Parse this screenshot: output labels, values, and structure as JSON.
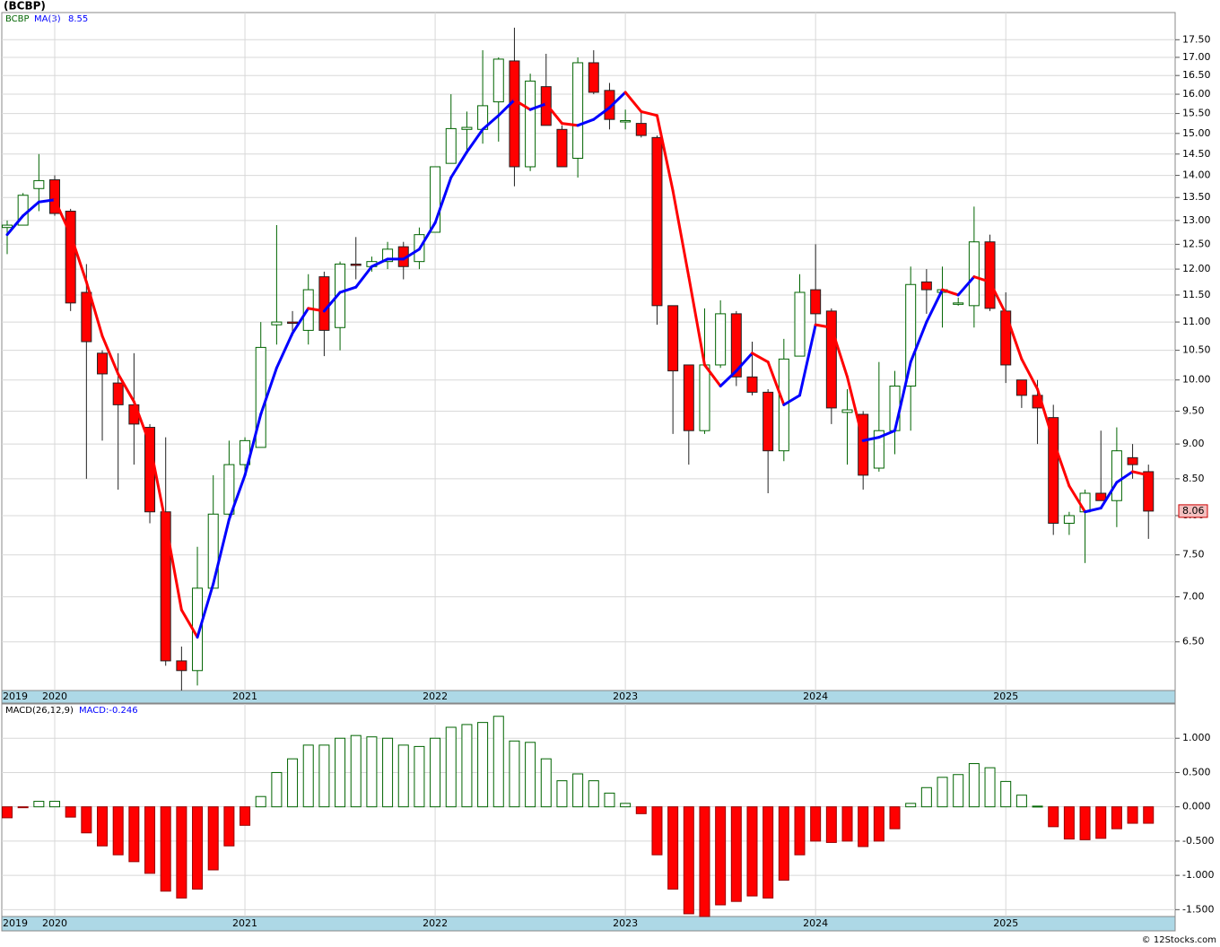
{
  "chart_data": [
    {
      "type": "candlestick",
      "title": "(BCBP)",
      "name": "BCBP",
      "log_scale": true,
      "grid": true,
      "up_color": "#006400",
      "down_color": "#ff0000",
      "categories": [
        "2019",
        null,
        null,
        "2020",
        null,
        null,
        null,
        null,
        null,
        null,
        null,
        null,
        null,
        null,
        null,
        "2021",
        null,
        null,
        null,
        null,
        null,
        null,
        null,
        null,
        null,
        null,
        null,
        "2022",
        null,
        null,
        null,
        null,
        null,
        null,
        null,
        null,
        null,
        null,
        null,
        "2023",
        null,
        null,
        null,
        null,
        null,
        null,
        null,
        null,
        null,
        null,
        null,
        "2024",
        null,
        null,
        null,
        null,
        null,
        null,
        null,
        null,
        null,
        null,
        null,
        "2025",
        null,
        null,
        null,
        null,
        null,
        null,
        null,
        null,
        null
      ],
      "open": [
        12.85,
        12.9,
        13.7,
        13.9,
        13.2,
        11.55,
        10.45,
        9.95,
        9.6,
        9.25,
        8.05,
        6.3,
        6.2,
        7.1,
        8.02,
        8.7,
        8.95,
        10.95,
        11.0,
        10.85,
        11.85,
        10.9,
        12.1,
        12.05,
        12.15,
        12.45,
        12.15,
        12.75,
        14.28,
        15.1,
        15.1,
        15.8,
        16.9,
        14.2,
        16.2,
        15.1,
        14.4,
        16.85,
        16.1,
        15.3,
        15.25,
        14.9,
        11.3,
        10.25,
        9.2,
        10.25,
        11.15,
        10.05,
        9.8,
        8.9,
        10.4,
        11.6,
        11.2,
        9.48,
        9.45,
        8.65,
        9.2,
        9.9,
        11.75,
        11.55,
        11.35,
        11.3,
        12.55,
        11.2,
        10.0,
        9.75,
        9.4,
        7.9,
        8.05,
        8.3,
        8.2,
        8.8,
        8.6
      ],
      "high": [
        13.0,
        13.6,
        14.5,
        14.0,
        13.25,
        12.1,
        10.5,
        10.45,
        10.45,
        9.3,
        9.1,
        6.45,
        7.6,
        8.55,
        9.05,
        9.1,
        11.0,
        12.9,
        11.2,
        11.9,
        11.95,
        12.15,
        12.65,
        12.25,
        12.55,
        12.55,
        12.85,
        14.2,
        16.0,
        15.55,
        17.2,
        17.0,
        17.85,
        16.55,
        17.1,
        15.2,
        17.0,
        17.2,
        16.3,
        15.6,
        15.55,
        14.95,
        11.3,
        10.25,
        11.25,
        11.4,
        11.2,
        10.65,
        9.85,
        10.7,
        11.9,
        12.5,
        11.25,
        9.85,
        9.5,
        10.3,
        10.15,
        12.05,
        12.0,
        12.05,
        11.45,
        13.3,
        12.7,
        11.55,
        10.0,
        10.0,
        9.6,
        8.05,
        8.35,
        9.2,
        9.25,
        9.0,
        8.7
      ],
      "low": [
        12.3,
        12.9,
        13.2,
        13.1,
        11.2,
        8.5,
        9.05,
        8.35,
        8.7,
        7.9,
        6.25,
        6.0,
        6.05,
        7.1,
        7.95,
        8.6,
        8.95,
        10.6,
        10.75,
        10.6,
        10.4,
        10.5,
        11.8,
        11.95,
        12.0,
        11.8,
        12.0,
        12.75,
        14.28,
        14.5,
        14.75,
        14.8,
        13.75,
        14.1,
        15.2,
        14.2,
        13.95,
        16.0,
        15.1,
        15.1,
        14.9,
        10.95,
        9.15,
        8.7,
        9.15,
        10.2,
        9.9,
        9.75,
        8.3,
        8.75,
        10.4,
        10.9,
        9.3,
        8.7,
        8.35,
        8.6,
        8.85,
        9.2,
        11.15,
        10.9,
        11.3,
        10.9,
        11.2,
        9.95,
        9.55,
        9.0,
        7.75,
        7.75,
        7.4,
        8.2,
        7.85,
        8.5,
        7.7
      ],
      "close": [
        12.9,
        13.55,
        13.88,
        13.15,
        11.35,
        10.65,
        10.1,
        9.6,
        9.3,
        8.05,
        6.3,
        6.2,
        7.1,
        8.02,
        8.7,
        9.05,
        10.55,
        11.0,
        10.98,
        11.6,
        10.85,
        12.1,
        12.08,
        12.15,
        12.4,
        12.05,
        12.7,
        14.2,
        15.12,
        15.15,
        15.7,
        16.95,
        14.2,
        16.35,
        15.2,
        14.2,
        16.85,
        16.05,
        15.35,
        15.32,
        14.95,
        11.3,
        10.15,
        9.2,
        10.25,
        11.15,
        10.05,
        9.8,
        8.9,
        10.35,
        11.55,
        11.15,
        9.55,
        9.52,
        8.55,
        9.2,
        9.9,
        11.7,
        11.6,
        11.6,
        11.35,
        12.55,
        11.25,
        10.25,
        9.75,
        9.55,
        7.9,
        8.0,
        8.3,
        8.2,
        8.9,
        8.7,
        8.06
      ],
      "last_close_label": "8.06",
      "ma": {
        "name": "MA(3)",
        "color": "#0000ff",
        "falling_color": "#ff0000",
        "last_value_label": "8.55",
        "values": [
          12.7,
          13.1,
          13.4,
          13.45,
          12.7,
          11.75,
          10.75,
          10.1,
          9.65,
          9.0,
          7.9,
          6.85,
          6.55,
          7.15,
          7.95,
          8.55,
          9.45,
          10.2,
          10.8,
          11.25,
          11.2,
          11.55,
          11.65,
          12.05,
          12.2,
          12.2,
          12.4,
          12.95,
          13.95,
          14.55,
          15.1,
          15.45,
          15.85,
          15.6,
          15.75,
          15.25,
          15.2,
          15.35,
          15.65,
          16.05,
          15.55,
          15.45,
          13.65,
          11.85,
          10.25,
          9.9,
          10.15,
          10.45,
          10.3,
          9.6,
          9.75,
          10.95,
          10.9,
          10.05,
          9.05,
          9.1,
          9.2,
          10.3,
          11.0,
          11.6,
          11.5,
          11.85,
          11.75,
          11.15,
          10.35,
          9.85,
          9.05,
          8.4,
          8.05,
          8.1,
          8.45,
          8.6,
          8.55
        ]
      },
      "ylim": [
        6.0,
        18.3
      ],
      "yticks": [
        {
          "value": 6.5,
          "label": "6.50"
        },
        {
          "value": 7,
          "label": "7.00"
        },
        {
          "value": 7.5,
          "label": "7.50"
        },
        {
          "value": 8,
          "label": "8.00"
        },
        {
          "value": 8.5,
          "label": "8.50"
        },
        {
          "value": 9,
          "label": "9.00"
        },
        {
          "value": 9.5,
          "label": "9.50"
        },
        {
          "value": 10,
          "label": "10.00"
        },
        {
          "value": 10.5,
          "label": "10.50"
        },
        {
          "value": 11,
          "label": "11.00"
        },
        {
          "value": 11.5,
          "label": "11.50"
        },
        {
          "value": 12,
          "label": "12.00"
        },
        {
          "value": 12.5,
          "label": "12.50"
        },
        {
          "value": 13,
          "label": "13.00"
        },
        {
          "value": 13.5,
          "label": "13.50"
        },
        {
          "value": 14,
          "label": "14.00"
        },
        {
          "value": 14.5,
          "label": "14.50"
        },
        {
          "value": 15,
          "label": "15.00"
        },
        {
          "value": 15.5,
          "label": "15.50"
        },
        {
          "value": 16,
          "label": "16.00"
        },
        {
          "value": 16.5,
          "label": "16.50"
        },
        {
          "value": 17,
          "label": "17.00"
        },
        {
          "value": 17.5,
          "label": "17.50"
        }
      ]
    },
    {
      "type": "bar",
      "title": "MACD(26,12,9)",
      "subtitle": "MACD:-0.246",
      "grid": true,
      "up_color": "#006400",
      "down_color": "#ff0000",
      "categories": [
        "2019",
        null,
        null,
        "2020",
        null,
        null,
        null,
        null,
        null,
        null,
        null,
        null,
        null,
        null,
        null,
        "2021",
        null,
        null,
        null,
        null,
        null,
        null,
        null,
        null,
        null,
        null,
        null,
        "2022",
        null,
        null,
        null,
        null,
        null,
        null,
        null,
        null,
        null,
        null,
        null,
        "2023",
        null,
        null,
        null,
        null,
        null,
        null,
        null,
        null,
        null,
        null,
        null,
        "2024",
        null,
        null,
        null,
        null,
        null,
        null,
        null,
        null,
        null,
        null,
        null,
        "2025",
        null,
        null,
        null,
        null,
        null,
        null,
        null,
        null,
        null
      ],
      "values": [
        -0.16,
        -0.01,
        0.08,
        0.08,
        -0.15,
        -0.38,
        -0.57,
        -0.7,
        -0.8,
        -0.97,
        -1.23,
        -1.33,
        -1.2,
        -0.92,
        -0.57,
        -0.27,
        0.15,
        0.5,
        0.7,
        0.9,
        0.9,
        1.0,
        1.04,
        1.02,
        1.0,
        0.9,
        0.88,
        1.0,
        1.16,
        1.2,
        1.23,
        1.32,
        0.96,
        0.94,
        0.7,
        0.38,
        0.48,
        0.38,
        0.2,
        0.05,
        -0.1,
        -0.7,
        -1.2,
        -1.56,
        -1.6,
        -1.43,
        -1.38,
        -1.3,
        -1.33,
        -1.07,
        -0.7,
        -0.5,
        -0.52,
        -0.5,
        -0.58,
        -0.5,
        -0.32,
        0.05,
        0.28,
        0.43,
        0.47,
        0.63,
        0.57,
        0.37,
        0.17,
        0.01,
        -0.29,
        -0.47,
        -0.48,
        -0.46,
        -0.32,
        -0.24,
        -0.24
      ],
      "ylim": [
        -1.6,
        1.5
      ],
      "yticks": [
        {
          "value": -1.5,
          "label": "-1.500"
        },
        {
          "value": -1,
          "label": "-1.000"
        },
        {
          "value": -0.5,
          "label": "-0.500"
        },
        {
          "value": 0,
          "label": "0.000"
        },
        {
          "value": 0.5,
          "label": "0.500"
        },
        {
          "value": 1,
          "label": "1.000"
        }
      ]
    }
  ],
  "footer": "© 12Stocks.com"
}
